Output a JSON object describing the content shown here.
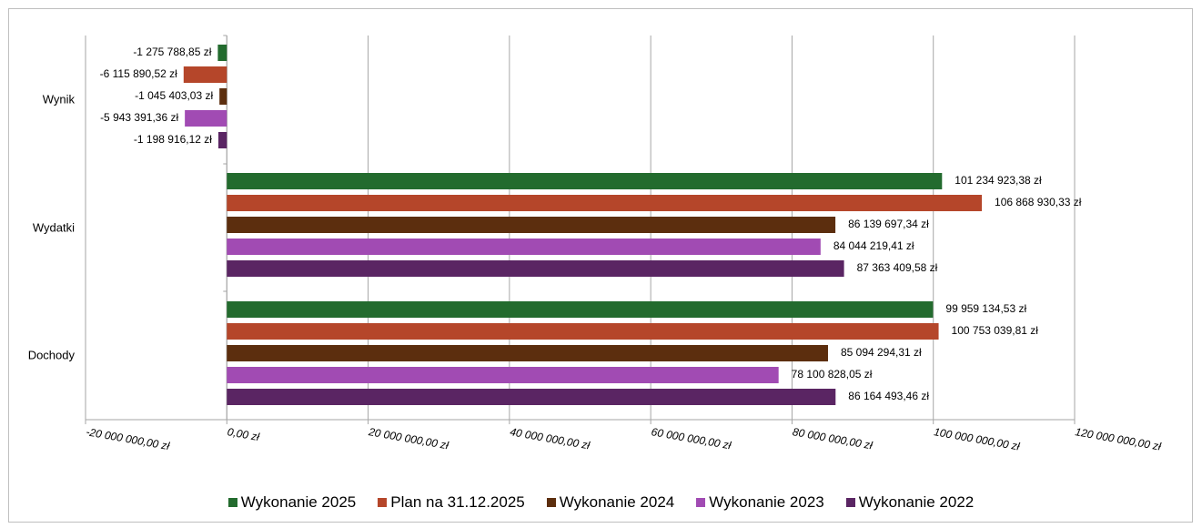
{
  "chart_data": {
    "type": "bar",
    "orientation": "horizontal",
    "categories": [
      "Wynik",
      "Wydatki",
      "Dochody"
    ],
    "series": [
      {
        "name": "Wykonanie 2025",
        "color": "#236b2e",
        "values": [
          -1275788.85,
          101234923.38,
          99959134.53
        ],
        "labels": [
          "-1 275 788,85 zł",
          "101 234 923,38 zł",
          "99 959 134,53 zł"
        ]
      },
      {
        "name": "Plan na 31.12.2025",
        "color": "#b5462a",
        "values": [
          -6115890.52,
          106868930.33,
          100753039.81
        ],
        "labels": [
          "-6 115 890,52 zł",
          "106 868 930,33 zł",
          "100 753 039,81 zł"
        ]
      },
      {
        "name": "Wykonanie 2024",
        "color": "#5c2e0e",
        "values": [
          -1045403.03,
          86139697.34,
          85094294.31
        ],
        "labels": [
          "-1 045 403,03 zł",
          "86 139 697,34 zł",
          "85 094 294,31 zł"
        ]
      },
      {
        "name": "Wykonanie 2023",
        "color": "#a14bb3",
        "values": [
          -5943391.36,
          84044219.41,
          78100828.05
        ],
        "labels": [
          "-5 943 391,36 zł",
          "84 044 219,41 zł",
          "78 100 828,05 zł"
        ]
      },
      {
        "name": "Wykonanie 2022",
        "color": "#5a2563",
        "values": [
          -1198916.12,
          87363409.58,
          86164493.46
        ],
        "labels": [
          "-1 198 916,12 zł",
          "87 363 409,58 zł",
          "86 164 493,46 zł"
        ]
      }
    ],
    "xlim": [
      -20000000,
      120000000
    ],
    "xticks": [
      -20000000,
      0,
      20000000,
      40000000,
      60000000,
      80000000,
      100000000,
      120000000
    ],
    "xtick_labels": [
      "-20 000 000,00 zł",
      "0,00 zł",
      "20 000 000,00 zł",
      "40 000 000,00 zł",
      "60 000 000,00 zł",
      "80 000 000,00 zł",
      "100 000 000,00 zł",
      "120 000 000,00 zł"
    ],
    "grid": "vertical",
    "legend_position": "bottom"
  }
}
